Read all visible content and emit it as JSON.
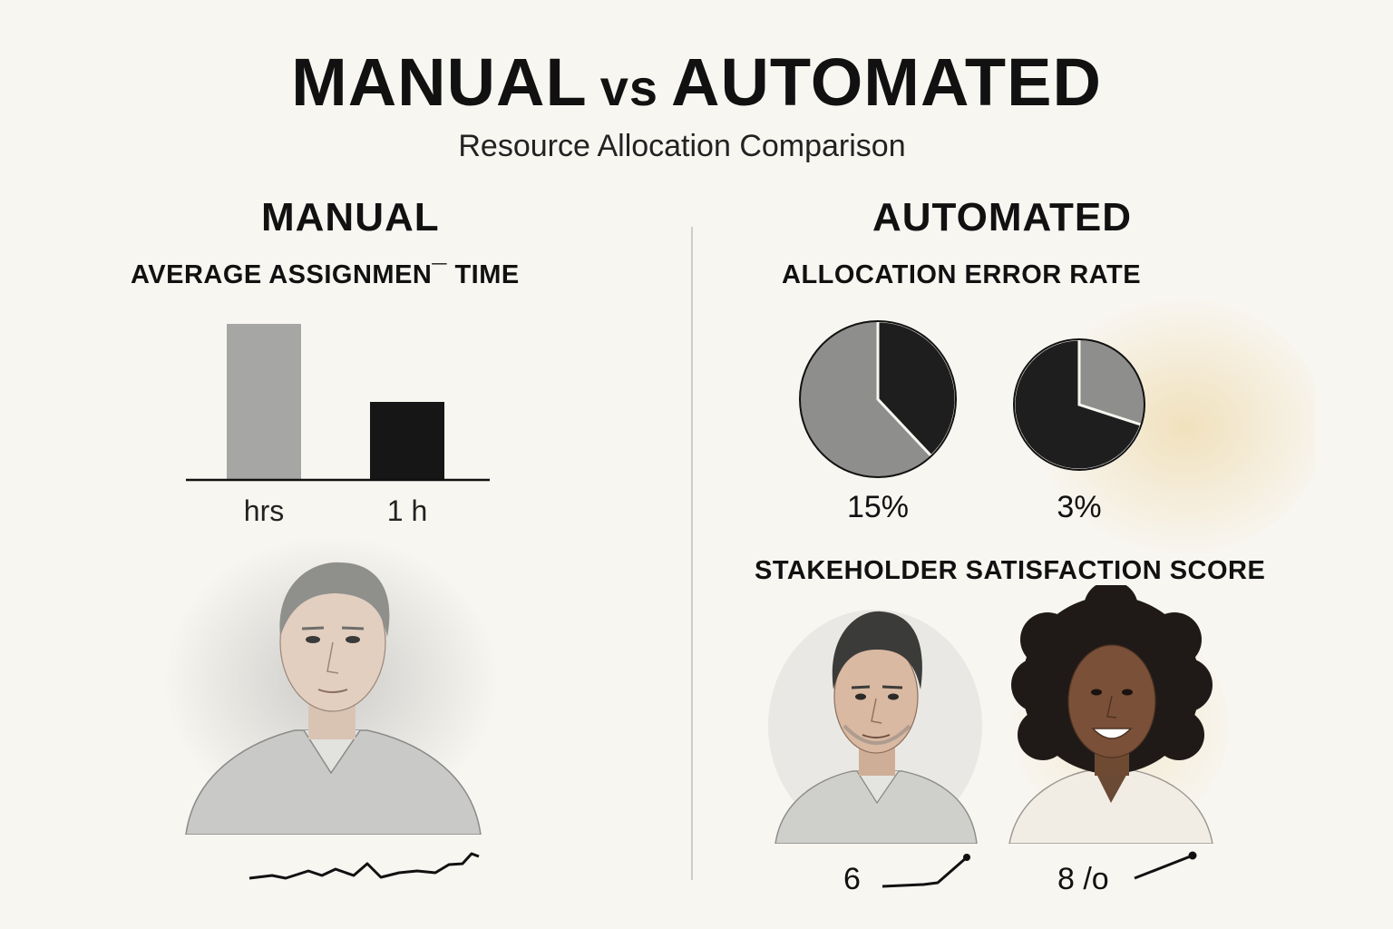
{
  "header": {
    "title_part1": "MANUAL",
    "title_vs": "vs",
    "title_part2": "AUTOMATED",
    "subtitle": "Resource Allocation Comparison"
  },
  "manual": {
    "heading": "MANUAL",
    "chart_title": "AVERAGE ASSIGNMEN¯ TIME",
    "portrait": "middle-aged-man-portrait"
  },
  "automated": {
    "heading": "AUTOMATED",
    "error_title": "ALLOCATION ERROR RATE",
    "satisfaction_title": "STAKEHOLDER SATISFACTION SCORE",
    "portraits": [
      "man-portrait",
      "smiling-woman-portrait"
    ],
    "scores": [
      "6",
      "8 /o"
    ]
  },
  "colors": {
    "manual_bar": "#a6a6a4",
    "automated_bar": "#161616",
    "pie_dark": "#1e1e1e",
    "pie_light": "#8e8e8c",
    "background": "#f8f6f1",
    "accent_wash": "#efdcb0"
  },
  "chart_data": [
    {
      "type": "bar",
      "title": "AVERAGE ASSIGNMEN¯ TIME",
      "categories": [
        "hrs",
        "1 h"
      ],
      "values": [
        4,
        2
      ],
      "xlabel": "",
      "ylabel": "",
      "grid": false
    },
    {
      "type": "pie",
      "title": "ALLOCATION ERROR RATE",
      "pies": [
        {
          "label": "15%",
          "dark_share": 0.38
        },
        {
          "label": "3%",
          "dark_share": 0.7
        }
      ]
    }
  ]
}
